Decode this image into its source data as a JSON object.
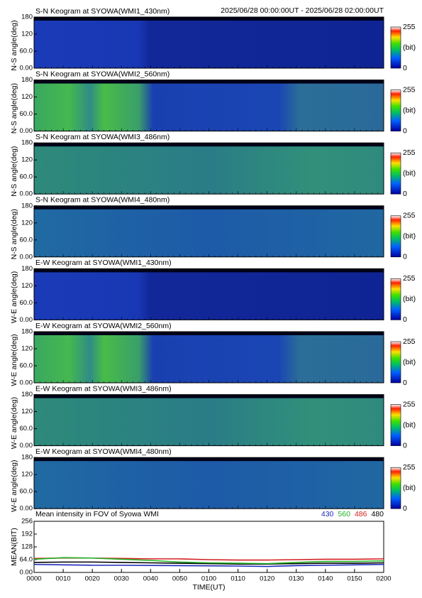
{
  "header": {
    "title": "S-N Keogram at SYOWA(WMI1_430nm)",
    "period": "2025/06/28 00:00:00UT - 2025/06/28 02:00:00UT"
  },
  "keograms": [
    {
      "title": "S-N Keogram at SYOWA(WMI1_430nm)",
      "ylabel": "N-S angle(deg)",
      "ylim": [
        0,
        180
      ],
      "yticks": [
        {
          "value": 0,
          "label": "0.00"
        },
        {
          "value": 60,
          "label": "60.0"
        },
        120,
        180
      ],
      "colorbar": {
        "ticks": [
          0,
          255
        ],
        "unit": "(bit)"
      }
    },
    {
      "title": "S-N Keogram at SYOWA(WMI2_560nm)",
      "ylabel": "N-S angle(deg)",
      "ylim": [
        0,
        180
      ],
      "yticks": [
        {
          "value": 0,
          "label": "0.00"
        },
        {
          "value": 60,
          "label": "60.0"
        },
        120,
        180
      ],
      "colorbar": {
        "ticks": [
          0,
          255
        ],
        "unit": "(bit)"
      }
    },
    {
      "title": "S-N Keogram at SYOWA(WMI3_486nm)",
      "ylabel": "N-S angle(deg)",
      "ylim": [
        0,
        180
      ],
      "yticks": [
        {
          "value": 0,
          "label": "0.00"
        },
        {
          "value": 60,
          "label": "60.0"
        },
        120,
        180
      ],
      "colorbar": {
        "ticks": [
          0,
          255
        ],
        "unit": "(bit)"
      }
    },
    {
      "title": "S-N Keogram at SYOWA(WMI4_480nm)",
      "ylabel": "N-S angle(deg)",
      "ylim": [
        0,
        180
      ],
      "yticks": [
        {
          "value": 0,
          "label": "0.00"
        },
        {
          "value": 60,
          "label": "60.0"
        },
        120,
        180
      ],
      "colorbar": {
        "ticks": [
          0,
          255
        ],
        "unit": "(bit)"
      }
    },
    {
      "title": "E-W Keogram at SYOWA(WMI1_430nm)",
      "ylabel": "W-E angle(deg)",
      "ylim": [
        0,
        180
      ],
      "yticks": [
        {
          "value": 0,
          "label": "0.00"
        },
        {
          "value": 60,
          "label": "60.0"
        },
        120,
        180
      ],
      "colorbar": {
        "ticks": [
          0,
          255
        ],
        "unit": "(bit)"
      }
    },
    {
      "title": "E-W Keogram at SYOWA(WMI2_560nm)",
      "ylabel": "W-E angle(deg)",
      "ylim": [
        0,
        180
      ],
      "yticks": [
        {
          "value": 0,
          "label": "0.00"
        },
        {
          "value": 60,
          "label": "60.0"
        },
        120,
        180
      ],
      "colorbar": {
        "ticks": [
          0,
          255
        ],
        "unit": "(bit)"
      }
    },
    {
      "title": "E-W Keogram at SYOWA(WMI3_486nm)",
      "ylabel": "W-E angle(deg)",
      "ylim": [
        0,
        180
      ],
      "yticks": [
        {
          "value": 0,
          "label": "0.00"
        },
        {
          "value": 60,
          "label": "60.0"
        },
        120,
        180
      ],
      "colorbar": {
        "ticks": [
          0,
          255
        ],
        "unit": "(bit)"
      }
    },
    {
      "title": "E-W Keogram at SYOWA(WMI4_480nm)",
      "ylabel": "W-E angle(deg)",
      "ylim": [
        0,
        180
      ],
      "yticks": [
        {
          "value": 0,
          "label": "0.00"
        },
        {
          "value": 60,
          "label": "60.0"
        },
        120,
        180
      ],
      "colorbar": {
        "ticks": [
          0,
          255
        ],
        "unit": "(bit)"
      }
    }
  ],
  "chart_data": {
    "type": "line",
    "title": "Mean intensity in FOV of Syowa WMI",
    "xlabel": "TIME(UT)",
    "ylabel": "MEAN(BIT)",
    "x": [
      0,
      10,
      20,
      30,
      40,
      50,
      60,
      70,
      80,
      90,
      100,
      110,
      120
    ],
    "xlim": [
      0,
      120
    ],
    "xticks": [
      {
        "value": 0,
        "label": "0000"
      },
      {
        "value": 10,
        "label": "0010"
      },
      {
        "value": 20,
        "label": "0020"
      },
      {
        "value": 30,
        "label": "0030"
      },
      {
        "value": 40,
        "label": "0040"
      },
      {
        "value": 50,
        "label": "0050"
      },
      {
        "value": 60,
        "label": "0100"
      },
      {
        "value": 70,
        "label": "0110"
      },
      {
        "value": 80,
        "label": "0120"
      },
      {
        "value": 90,
        "label": "0130"
      },
      {
        "value": 100,
        "label": "0140"
      },
      {
        "value": 110,
        "label": "0150"
      },
      {
        "value": 120,
        "label": "0200"
      }
    ],
    "ylim": [
      0,
      256
    ],
    "yticks": [
      {
        "value": 0,
        "label": "0.00"
      },
      {
        "value": 64,
        "label": "64.0"
      },
      128,
      192,
      256
    ],
    "series": [
      {
        "name": "430",
        "color": "#1a2ab8",
        "values": [
          40,
          38,
          36,
          36,
          35,
          34,
          33,
          32,
          30,
          34,
          36,
          38,
          40
        ]
      },
      {
        "name": "560",
        "color": "#22b222",
        "values": [
          66,
          74,
          72,
          66,
          60,
          52,
          48,
          46,
          44,
          50,
          55,
          55,
          58
        ]
      },
      {
        "name": "486",
        "color": "#d42020",
        "values": [
          70,
          72,
          72,
          70,
          68,
          68,
          64,
          62,
          62,
          64,
          66,
          66,
          68
        ]
      },
      {
        "name": "480",
        "color": "#000000",
        "values": [
          50,
          52,
          52,
          50,
          48,
          46,
          44,
          42,
          42,
          44,
          46,
          46,
          48
        ]
      }
    ]
  }
}
